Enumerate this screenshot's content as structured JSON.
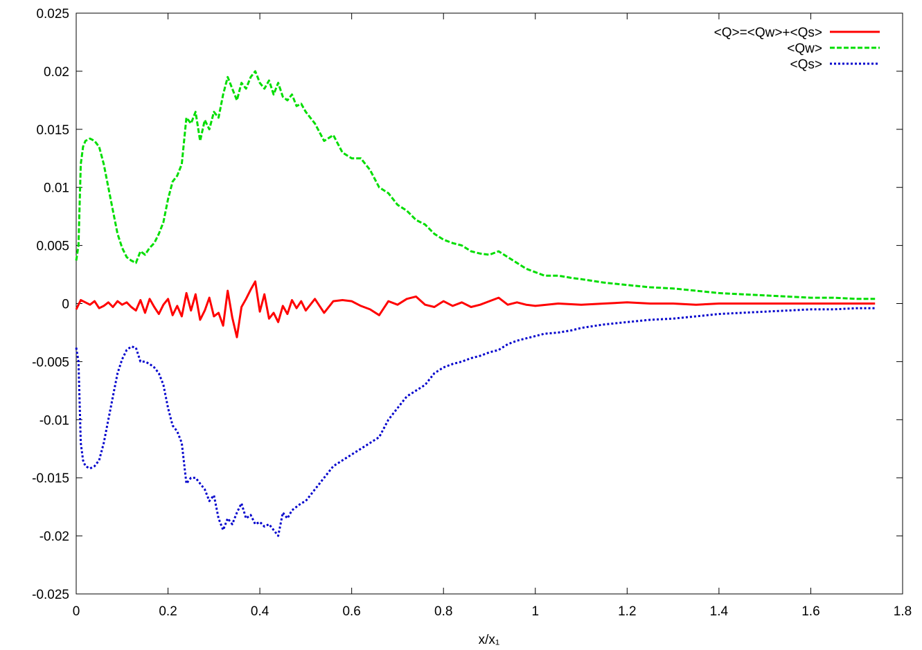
{
  "chart_data": {
    "type": "line",
    "title": "",
    "xlabel": "x/x₁",
    "ylabel": "",
    "xlim": [
      0,
      1.8
    ],
    "ylim": [
      -0.025,
      0.025
    ],
    "xticks": [
      0,
      0.2,
      0.4,
      0.6,
      0.8,
      1,
      1.2,
      1.4,
      1.6,
      1.8
    ],
    "xtick_labels": [
      "0",
      "0.2",
      "0.4",
      "0.6",
      "0.8",
      "1",
      "1.2",
      "1.4",
      "1.6",
      "1.8"
    ],
    "yticks": [
      -0.025,
      -0.02,
      -0.015,
      -0.01,
      -0.005,
      0,
      0.005,
      0.01,
      0.015,
      0.02,
      0.025
    ],
    "ytick_labels": [
      "-0.025",
      "-0.02",
      "-0.015",
      "-0.01",
      "-0.005",
      "0",
      "0.005",
      "0.01",
      "0.015",
      "0.02",
      "0.025"
    ],
    "grid": false,
    "legend_position": "top-right",
    "series": [
      {
        "name": "<Q>=<Qw>+<Qs>",
        "color": "#ff0000",
        "dash": "solid",
        "x": [
          0,
          0.01,
          0.02,
          0.03,
          0.04,
          0.05,
          0.06,
          0.07,
          0.08,
          0.09,
          0.1,
          0.11,
          0.12,
          0.13,
          0.14,
          0.15,
          0.16,
          0.17,
          0.18,
          0.19,
          0.2,
          0.21,
          0.22,
          0.23,
          0.24,
          0.25,
          0.26,
          0.27,
          0.28,
          0.29,
          0.3,
          0.31,
          0.32,
          0.33,
          0.34,
          0.35,
          0.36,
          0.37,
          0.38,
          0.39,
          0.4,
          0.41,
          0.42,
          0.43,
          0.44,
          0.45,
          0.46,
          0.47,
          0.48,
          0.49,
          0.5,
          0.52,
          0.54,
          0.56,
          0.58,
          0.6,
          0.62,
          0.64,
          0.66,
          0.68,
          0.7,
          0.72,
          0.74,
          0.76,
          0.78,
          0.8,
          0.82,
          0.84,
          0.86,
          0.88,
          0.9,
          0.92,
          0.94,
          0.96,
          0.98,
          1.0,
          1.05,
          1.1,
          1.15,
          1.2,
          1.25,
          1.3,
          1.35,
          1.4,
          1.45,
          1.5,
          1.55,
          1.6,
          1.65,
          1.7,
          1.74
        ],
        "y": [
          -0.0005,
          0.0003,
          0.0001,
          -0.0001,
          0.0002,
          -0.0004,
          -0.0002,
          0.0001,
          -0.0003,
          0.0002,
          -0.0001,
          0.0001,
          -0.0003,
          -0.0006,
          0.0003,
          -0.0008,
          0.0004,
          -0.0003,
          -0.0009,
          -0.0001,
          0.0004,
          -0.001,
          -0.0002,
          -0.0011,
          0.0009,
          -0.0006,
          0.0008,
          -0.0014,
          -0.0006,
          0.0005,
          -0.0011,
          -0.0008,
          -0.0019,
          0.0011,
          -0.0012,
          -0.0029,
          -0.0003,
          0.0004,
          0.0012,
          0.0019,
          -0.0007,
          0.0008,
          -0.0013,
          -0.0008,
          -0.0016,
          -0.0002,
          -0.0009,
          0.0003,
          -0.0004,
          0.0002,
          -0.0006,
          0.0004,
          -0.0008,
          0.0002,
          0.0003,
          0.0002,
          -0.0002,
          -0.0005,
          -0.001,
          0.0002,
          -0.0001,
          0.0004,
          0.0006,
          -0.0001,
          -0.0003,
          0.0002,
          -0.0002,
          0.0001,
          -0.0003,
          -0.0001,
          0.0002,
          0.0005,
          -0.0001,
          0.0001,
          -0.0001,
          -0.0002,
          0.0,
          -0.0001,
          0.0,
          0.0001,
          0.0,
          0.0,
          -0.0001,
          0.0,
          0.0,
          0.0,
          0.0,
          0.0,
          0.0,
          0.0,
          0.0
        ]
      },
      {
        "name": "<Qw>",
        "color": "#00dd00",
        "dash": "dashed",
        "x": [
          0,
          0.005,
          0.01,
          0.015,
          0.02,
          0.03,
          0.04,
          0.05,
          0.06,
          0.07,
          0.08,
          0.09,
          0.1,
          0.11,
          0.12,
          0.13,
          0.14,
          0.15,
          0.16,
          0.17,
          0.18,
          0.19,
          0.2,
          0.21,
          0.22,
          0.23,
          0.24,
          0.25,
          0.26,
          0.27,
          0.28,
          0.29,
          0.3,
          0.31,
          0.32,
          0.33,
          0.34,
          0.35,
          0.36,
          0.37,
          0.38,
          0.39,
          0.4,
          0.41,
          0.42,
          0.43,
          0.44,
          0.45,
          0.46,
          0.47,
          0.48,
          0.49,
          0.5,
          0.52,
          0.54,
          0.56,
          0.58,
          0.6,
          0.62,
          0.64,
          0.66,
          0.68,
          0.7,
          0.72,
          0.74,
          0.76,
          0.78,
          0.8,
          0.82,
          0.84,
          0.86,
          0.88,
          0.9,
          0.92,
          0.94,
          0.96,
          0.98,
          1.0,
          1.02,
          1.05,
          1.08,
          1.1,
          1.15,
          1.2,
          1.25,
          1.3,
          1.35,
          1.4,
          1.45,
          1.5,
          1.55,
          1.6,
          1.65,
          1.7,
          1.74
        ],
        "y": [
          0.0037,
          0.005,
          0.012,
          0.0135,
          0.014,
          0.0142,
          0.014,
          0.0135,
          0.012,
          0.01,
          0.008,
          0.006,
          0.0048,
          0.004,
          0.0037,
          0.0035,
          0.0045,
          0.0042,
          0.0048,
          0.0052,
          0.006,
          0.007,
          0.009,
          0.0105,
          0.011,
          0.012,
          0.016,
          0.0155,
          0.0165,
          0.014,
          0.0158,
          0.015,
          0.0165,
          0.016,
          0.018,
          0.0195,
          0.0185,
          0.0175,
          0.019,
          0.0185,
          0.0195,
          0.02,
          0.019,
          0.0185,
          0.0192,
          0.018,
          0.019,
          0.0178,
          0.0175,
          0.018,
          0.017,
          0.0172,
          0.0165,
          0.0155,
          0.014,
          0.0145,
          0.013,
          0.0125,
          0.0125,
          0.0115,
          0.01,
          0.0095,
          0.0085,
          0.008,
          0.0072,
          0.0068,
          0.006,
          0.0055,
          0.0052,
          0.005,
          0.0045,
          0.0043,
          0.0042,
          0.0045,
          0.004,
          0.0035,
          0.003,
          0.0027,
          0.0024,
          0.0024,
          0.0022,
          0.0021,
          0.0018,
          0.0016,
          0.0014,
          0.0013,
          0.0011,
          0.0009,
          0.0008,
          0.0007,
          0.0006,
          0.0005,
          0.0005,
          0.0004,
          0.0004
        ]
      },
      {
        "name": "<Qs>",
        "color": "#0000cc",
        "dash": "dotted",
        "x": [
          0,
          0.005,
          0.01,
          0.015,
          0.02,
          0.03,
          0.04,
          0.05,
          0.06,
          0.07,
          0.08,
          0.09,
          0.1,
          0.11,
          0.12,
          0.13,
          0.14,
          0.15,
          0.16,
          0.17,
          0.18,
          0.19,
          0.2,
          0.21,
          0.22,
          0.23,
          0.24,
          0.25,
          0.26,
          0.27,
          0.28,
          0.29,
          0.3,
          0.31,
          0.32,
          0.33,
          0.34,
          0.35,
          0.36,
          0.37,
          0.38,
          0.39,
          0.4,
          0.41,
          0.42,
          0.43,
          0.44,
          0.45,
          0.46,
          0.47,
          0.48,
          0.49,
          0.5,
          0.52,
          0.54,
          0.56,
          0.58,
          0.6,
          0.62,
          0.64,
          0.66,
          0.68,
          0.7,
          0.72,
          0.74,
          0.76,
          0.78,
          0.8,
          0.82,
          0.84,
          0.86,
          0.88,
          0.9,
          0.92,
          0.94,
          0.96,
          0.98,
          1.0,
          1.02,
          1.05,
          1.08,
          1.1,
          1.15,
          1.2,
          1.25,
          1.3,
          1.35,
          1.4,
          1.45,
          1.5,
          1.55,
          1.6,
          1.65,
          1.7,
          1.74
        ],
        "y": [
          -0.0038,
          -0.005,
          -0.012,
          -0.0135,
          -0.014,
          -0.0142,
          -0.014,
          -0.0135,
          -0.012,
          -0.01,
          -0.008,
          -0.006,
          -0.0048,
          -0.004,
          -0.0037,
          -0.0038,
          -0.005,
          -0.005,
          -0.0052,
          -0.0055,
          -0.006,
          -0.007,
          -0.009,
          -0.0105,
          -0.011,
          -0.012,
          -0.0155,
          -0.015,
          -0.015,
          -0.0155,
          -0.016,
          -0.017,
          -0.0165,
          -0.0185,
          -0.0195,
          -0.0185,
          -0.019,
          -0.018,
          -0.0172,
          -0.0185,
          -0.0182,
          -0.019,
          -0.0188,
          -0.0192,
          -0.019,
          -0.0195,
          -0.02,
          -0.018,
          -0.0185,
          -0.0178,
          -0.0175,
          -0.0172,
          -0.017,
          -0.016,
          -0.015,
          -0.014,
          -0.0135,
          -0.013,
          -0.0125,
          -0.012,
          -0.0115,
          -0.01,
          -0.009,
          -0.008,
          -0.0075,
          -0.007,
          -0.006,
          -0.0055,
          -0.0052,
          -0.005,
          -0.0047,
          -0.0045,
          -0.0042,
          -0.004,
          -0.0035,
          -0.0032,
          -0.003,
          -0.0028,
          -0.0026,
          -0.0025,
          -0.0023,
          -0.0021,
          -0.0018,
          -0.0016,
          -0.0014,
          -0.0013,
          -0.0011,
          -0.0009,
          -0.0008,
          -0.0007,
          -0.0006,
          -0.0005,
          -0.0005,
          -0.0004,
          -0.0004
        ]
      }
    ]
  }
}
